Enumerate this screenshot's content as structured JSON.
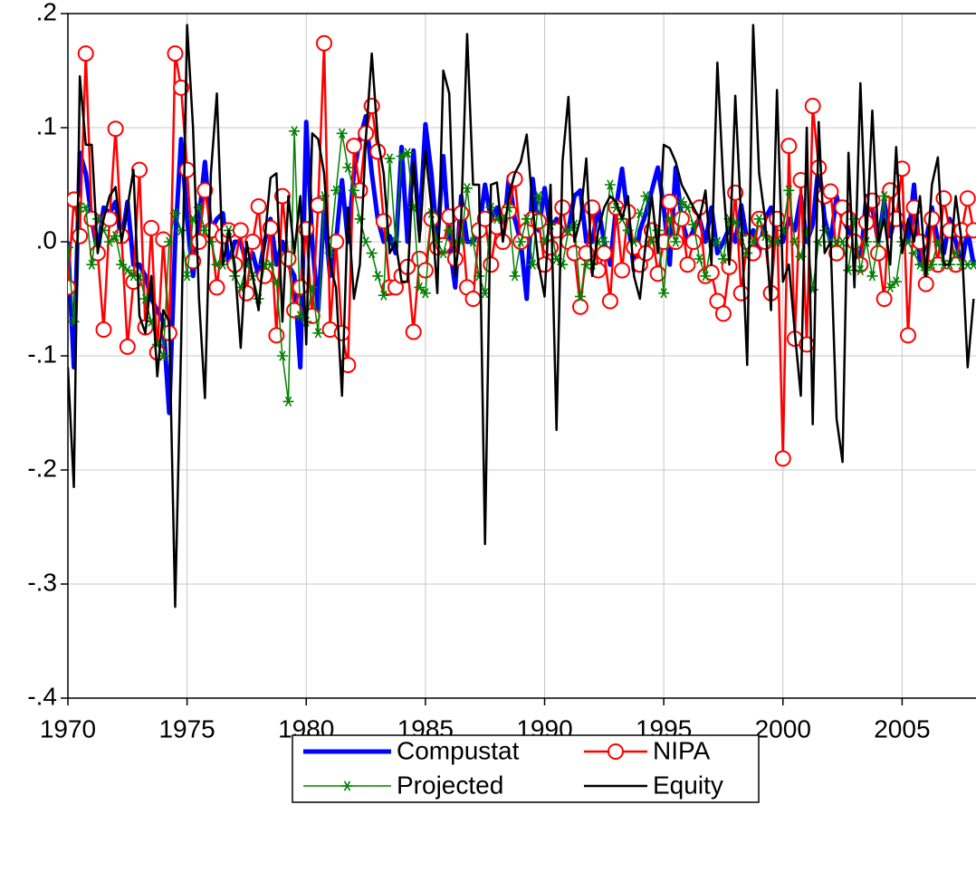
{
  "chart_data": {
    "type": "line",
    "x": [
      1970,
      1970.25,
      1970.5,
      1970.75,
      1971,
      1971.25,
      1971.5,
      1971.75,
      1972,
      1972.25,
      1972.5,
      1972.75,
      1973,
      1973.25,
      1973.5,
      1973.75,
      1974,
      1974.25,
      1974.5,
      1974.75,
      1975,
      1975.25,
      1975.5,
      1975.75,
      1976,
      1976.25,
      1976.5,
      1976.75,
      1977,
      1977.25,
      1977.5,
      1977.75,
      1978,
      1978.25,
      1978.5,
      1978.75,
      1979,
      1979.25,
      1979.5,
      1979.75,
      1980,
      1980.25,
      1980.5,
      1980.75,
      1981,
      1981.25,
      1981.5,
      1981.75,
      1982,
      1982.25,
      1982.5,
      1982.75,
      1983,
      1983.25,
      1983.5,
      1983.75,
      1984,
      1984.25,
      1984.5,
      1984.75,
      1985,
      1985.25,
      1985.5,
      1985.75,
      1986,
      1986.25,
      1986.5,
      1986.75,
      1987,
      1987.25,
      1987.5,
      1987.75,
      1988,
      1988.25,
      1988.5,
      1988.75,
      1989,
      1989.25,
      1989.5,
      1989.75,
      1990,
      1990.25,
      1990.5,
      1990.75,
      1991,
      1991.25,
      1991.5,
      1991.75,
      1992,
      1992.25,
      1992.5,
      1992.75,
      1993,
      1993.25,
      1993.5,
      1993.75,
      1994,
      1994.25,
      1994.5,
      1994.75,
      1995,
      1995.25,
      1995.5,
      1995.75,
      1996,
      1996.25,
      1996.5,
      1996.75,
      1997,
      1997.25,
      1997.5,
      1997.75,
      1998,
      1998.25,
      1998.5,
      1998.75,
      1999,
      1999.25,
      1999.5,
      1999.75,
      2000,
      2000.25,
      2000.5,
      2000.75,
      2001,
      2001.25,
      2001.5,
      2001.75,
      2002,
      2002.25,
      2002.5,
      2002.75,
      2003,
      2003.25,
      2003.5,
      2003.75,
      2004,
      2004.25,
      2004.5,
      2004.75,
      2005,
      2005.25,
      2005.5,
      2005.75,
      2006,
      2006.25,
      2006.5,
      2006.75,
      2007,
      2007.25,
      2007.5,
      2007.75,
      2008
    ],
    "series": [
      {
        "name": "Compustat",
        "color": "#0000ff",
        "width": 5,
        "marker": null,
        "values": [
          0.0,
          -0.11,
          0.078,
          0.06,
          0.02,
          -0.01,
          0.03,
          0.025,
          0.035,
          0.0,
          0.035,
          -0.02,
          -0.02,
          -0.03,
          -0.05,
          -0.06,
          -0.07,
          -0.15,
          0.0,
          0.09,
          0.02,
          -0.03,
          0.02,
          0.07,
          0.01,
          0.02,
          0.025,
          -0.02,
          0.0,
          0.0,
          -0.02,
          -0.01,
          -0.03,
          0.0,
          0.02,
          -0.02,
          0.0,
          -0.02,
          -0.03,
          -0.11,
          0.105,
          0.0,
          -0.06,
          0.03,
          -0.03,
          0.0,
          0.054,
          0.0,
          0.06,
          0.09,
          0.11,
          0.06,
          0.02,
          0.0,
          0.005,
          -0.01,
          0.083,
          0.0,
          0.08,
          0.01,
          0.103,
          0.06,
          0.0,
          0.075,
          0.0,
          -0.04,
          0.04,
          0.0,
          0.0,
          0.01,
          0.05,
          0.02,
          0.03,
          0.0,
          0.057,
          0.02,
          0.0,
          -0.05,
          0.055,
          0.01,
          0.047,
          0.01,
          0.02,
          0.01,
          0.01,
          0.04,
          0.045,
          0.0,
          0.0,
          0.03,
          0.0,
          -0.02,
          0.03,
          0.064,
          0.02,
          -0.025,
          0.01,
          0.025,
          0.045,
          0.065,
          0.03,
          -0.02,
          0.065,
          0.02,
          0.0,
          0.01,
          0.02,
          0.0,
          0.03,
          -0.01,
          0.0,
          0.012,
          0.0,
          0.032,
          0.0,
          0.01,
          -0.01,
          0.02,
          0.03,
          0.0,
          0.0,
          0.02,
          0.01,
          0.04,
          0.0,
          0.015,
          0.068,
          0.02,
          0.0,
          0.04,
          0.02,
          0.01,
          0.0,
          -0.02,
          0.04,
          0.03,
          0.0,
          0.035,
          0.005,
          0.025,
          0.02,
          0.0,
          0.05,
          -0.02,
          0.0,
          0.03,
          0.0,
          -0.01,
          0.02,
          0.0,
          -0.02,
          0.01,
          -0.02
        ]
      },
      {
        "name": "NIPA",
        "color": "#ff0000",
        "width": 2.5,
        "marker": "circle",
        "values": [
          -0.04,
          0.037,
          0.005,
          0.165,
          0.02,
          -0.01,
          -0.077,
          0.02,
          0.099,
          0.005,
          -0.092,
          -0.035,
          0.063,
          -0.075,
          0.012,
          -0.097,
          0.002,
          -0.08,
          0.165,
          0.135,
          0.063,
          -0.017,
          0.0,
          0.045,
          0.01,
          -0.04,
          0.005,
          0.01,
          -0.02,
          0.01,
          -0.045,
          0.0,
          0.031,
          -0.03,
          0.012,
          -0.082,
          0.04,
          -0.015,
          -0.06,
          -0.04,
          0.011,
          -0.065,
          0.032,
          0.174,
          -0.077,
          0.0,
          -0.08,
          -0.108,
          0.084,
          0.045,
          0.095,
          0.119,
          0.079,
          0.018,
          -0.04,
          -0.04,
          -0.03,
          -0.022,
          -0.079,
          -0.015,
          -0.025,
          0.02,
          -0.005,
          -0.003,
          0.022,
          -0.015,
          0.025,
          -0.04,
          -0.05,
          0.01,
          0.02,
          -0.02,
          0.013,
          0.0,
          0.027,
          0.055,
          0.0,
          0.01,
          0.02,
          0.018,
          -0.02,
          -0.005,
          0.01,
          0.03,
          0.0,
          -0.01,
          -0.057,
          -0.01,
          0.03,
          -0.025,
          -0.01,
          -0.052,
          0.03,
          -0.025,
          0.026,
          -0.005,
          -0.02,
          -0.01,
          0.01,
          -0.028,
          0.0,
          0.035,
          0.0,
          0.02,
          -0.02,
          0.0,
          0.03,
          -0.03,
          -0.027,
          -0.052,
          -0.063,
          -0.022,
          0.043,
          -0.045,
          0.0,
          -0.01,
          0.02,
          0.0,
          -0.045,
          0.02,
          -0.19,
          0.084,
          -0.085,
          0.054,
          -0.09,
          0.119,
          0.065,
          0.04,
          0.044,
          -0.01,
          0.03,
          0.02,
          0.0,
          -0.02,
          0.017,
          0.036,
          -0.01,
          -0.05,
          0.045,
          0.02,
          0.064,
          -0.082,
          0.03,
          0.0,
          -0.037,
          0.02,
          -0.02,
          0.038,
          0.01,
          -0.02,
          0.01,
          0.038,
          0.01
        ]
      },
      {
        "name": "Projected",
        "color": "#008000",
        "width": 1.5,
        "marker": "star",
        "values": [
          -0.005,
          -0.07,
          0.03,
          0.03,
          -0.02,
          0.02,
          0.01,
          0.0,
          0.005,
          -0.02,
          -0.025,
          -0.03,
          -0.03,
          -0.05,
          -0.07,
          -0.09,
          -0.1,
          0.0,
          0.025,
          0.01,
          -0.03,
          0.02,
          0.03,
          0.01,
          0.0,
          -0.02,
          -0.02,
          0.01,
          -0.03,
          -0.04,
          -0.02,
          -0.03,
          -0.05,
          -0.02,
          -0.02,
          -0.035,
          -0.1,
          -0.14,
          0.097,
          -0.065,
          -0.07,
          -0.04,
          -0.08,
          0.04,
          -0.01,
          0.045,
          0.095,
          0.065,
          0.045,
          0.02,
          0.0,
          -0.01,
          -0.03,
          -0.047,
          0.073,
          0.0,
          0.075,
          0.078,
          0.03,
          -0.04,
          -0.045,
          0.025,
          0.0,
          -0.01,
          0.01,
          0.0,
          0.0,
          0.047,
          0.0,
          -0.03,
          -0.045,
          0.03,
          0.02,
          0.02,
          0.03,
          -0.03,
          0.0,
          0.02,
          -0.02,
          0.04,
          0.0,
          0.015,
          -0.015,
          -0.02,
          0.01,
          0.015,
          -0.048,
          -0.02,
          -0.02,
          0.0,
          0.0,
          0.05,
          0.03,
          0.02,
          0.01,
          0.0,
          0.025,
          0.04,
          0.0,
          0.01,
          -0.045,
          0.02,
          0.0,
          0.035,
          0.03,
          0.015,
          -0.015,
          -0.03,
          0.0,
          0.0,
          -0.015,
          0.02,
          0.017,
          0.005,
          -0.01,
          0.0,
          0.02,
          0.005,
          0.0,
          0.0,
          0.01,
          0.045,
          0.0,
          -0.013,
          0.01,
          -0.042,
          0.0,
          0.01,
          0.0,
          0.0,
          0.0,
          -0.025,
          0.02,
          -0.025,
          0.0,
          -0.03,
          0.0,
          0.04,
          -0.04,
          -0.035,
          0.0,
          0.0,
          -0.01,
          -0.02,
          -0.025,
          -0.02,
          0.0,
          -0.02,
          -0.02,
          -0.01,
          -0.02,
          -0.02,
          -0.02
        ]
      },
      {
        "name": "Equity",
        "color": "#000000",
        "width": 2.5,
        "marker": null,
        "values": [
          -0.11,
          -0.215,
          0.145,
          0.085,
          0.085,
          -0.01,
          0.02,
          0.04,
          0.048,
          0.0,
          0.03,
          0.063,
          -0.065,
          -0.08,
          -0.03,
          -0.118,
          -0.06,
          -0.07,
          -0.32,
          -0.09,
          0.19,
          0.1,
          -0.05,
          -0.137,
          0.06,
          0.13,
          -0.02,
          0.01,
          -0.02,
          -0.093,
          0.0,
          -0.03,
          -0.06,
          0.0,
          0.056,
          0.06,
          -0.07,
          0.04,
          -0.01,
          0.04,
          -0.09,
          0.095,
          0.09,
          0.06,
          -0.02,
          -0.04,
          -0.135,
          0.03,
          -0.05,
          -0.02,
          0.09,
          0.165,
          0.09,
          0.06,
          -0.01,
          0.0,
          -0.035,
          -0.035,
          0.07,
          0.0,
          0.08,
          0.03,
          -0.045,
          0.15,
          0.13,
          -0.03,
          0.02,
          0.182,
          0.05,
          0.05,
          -0.265,
          0.05,
          0.052,
          0.0,
          0.04,
          0.06,
          0.07,
          0.094,
          0.03,
          -0.02,
          -0.048,
          0.05,
          -0.165,
          0.07,
          0.127,
          0.0,
          0.02,
          0.073,
          -0.03,
          0.01,
          0.03,
          0.04,
          0.035,
          0.02,
          0.04,
          -0.03,
          -0.05,
          0.0,
          0.04,
          -0.01,
          0.085,
          0.082,
          0.07,
          0.05,
          0.04,
          0.03,
          0.02,
          0.045,
          -0.02,
          0.157,
          0.05,
          -0.02,
          0.128,
          0.02,
          -0.108,
          0.19,
          0.06,
          0.02,
          -0.06,
          0.133,
          -0.035,
          -0.02,
          -0.08,
          -0.135,
          0.1,
          -0.16,
          0.105,
          -0.01,
          0.0,
          -0.155,
          -0.193,
          0.078,
          -0.04,
          0.139,
          0.0,
          0.115,
          0.0,
          0.02,
          -0.02,
          0.083,
          -0.01,
          0.02,
          0.0,
          0.04,
          -0.03,
          0.05,
          0.074,
          -0.02,
          -0.02,
          0.04,
          0.0,
          -0.11,
          -0.05
        ]
      }
    ],
    "xlim": [
      1970,
      2008.1
    ],
    "xticks": [
      1970,
      1975,
      1980,
      1985,
      1990,
      1995,
      2000,
      2005
    ],
    "ylim": [
      -0.4,
      0.2
    ],
    "yticks": [
      {
        "value": -0.4,
        "label": "-.4"
      },
      {
        "value": -0.3,
        "label": "-.3"
      },
      {
        "value": -0.2,
        "label": "-.2"
      },
      {
        "value": -0.1,
        "label": "-.1"
      },
      {
        "value": 0,
        "label": ".0"
      },
      {
        "value": 0.1,
        "label": ".1"
      },
      {
        "value": 0.2,
        "label": ".2"
      }
    ],
    "grid": true,
    "legend": "bottom"
  }
}
